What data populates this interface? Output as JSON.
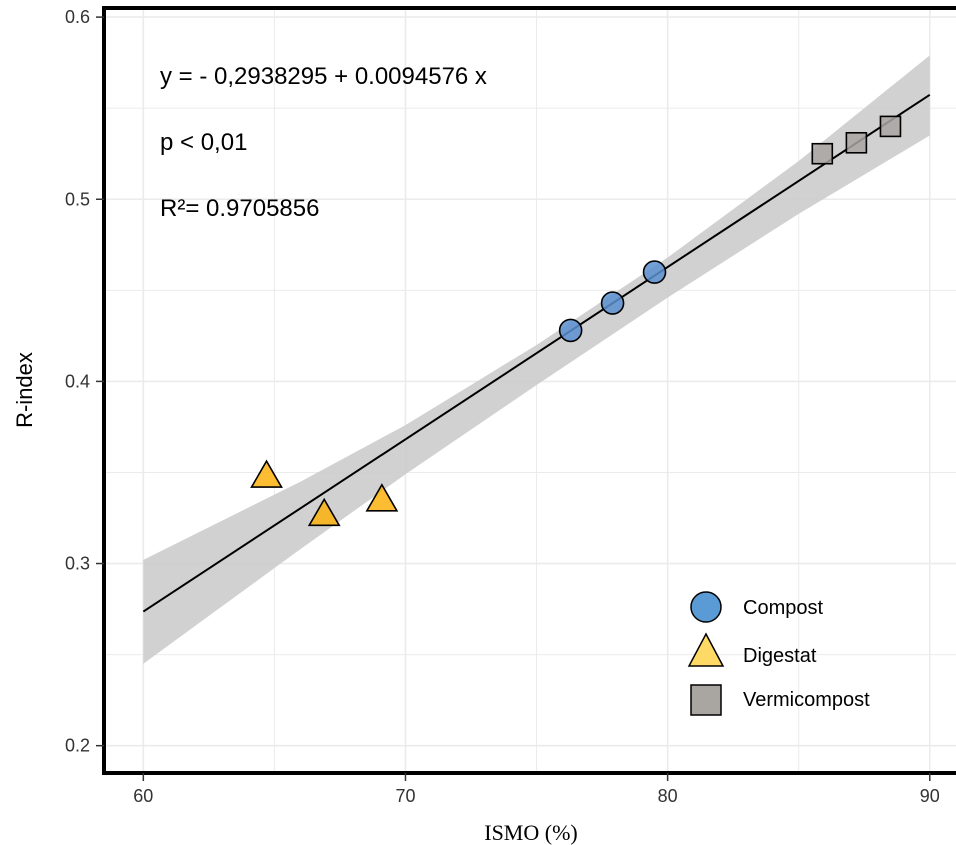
{
  "chart_data": {
    "type": "scatter",
    "xlabel": "ISMO (%)",
    "ylabel": "R-index",
    "xlim": [
      58.5,
      91
    ],
    "ylim": [
      0.185,
      0.605
    ],
    "x_ticks": [
      60,
      70,
      80,
      90
    ],
    "y_ticks": [
      0.2,
      0.3,
      0.4,
      0.5,
      0.6
    ],
    "x_tick_labels": [
      "60",
      "70",
      "80",
      "90"
    ],
    "y_tick_labels": [
      "0.2",
      "0.3",
      "0.4",
      "0.5",
      "0.6"
    ],
    "grid": true,
    "legend_position": "bottom-right",
    "annotations": [
      "y = - 0,2938295 + 0.0094576 x",
      "p < 0,01",
      "R²= 0.9705856"
    ],
    "regression": {
      "x_range": [
        60,
        90
      ],
      "intercept": -0.2938295,
      "slope": 0.0094576,
      "ci_lower": [
        [
          60,
          0.245
        ],
        [
          66,
          0.308
        ],
        [
          70,
          0.349
        ],
        [
          75,
          0.398
        ],
        [
          80,
          0.446
        ],
        [
          85,
          0.492
        ],
        [
          90,
          0.535
        ]
      ],
      "ci_upper": [
        [
          60,
          0.302
        ],
        [
          66,
          0.345
        ],
        [
          70,
          0.376
        ],
        [
          75,
          0.42
        ],
        [
          80,
          0.468
        ],
        [
          85,
          0.521
        ],
        [
          90,
          0.579
        ]
      ]
    },
    "series": [
      {
        "name": "Compost",
        "marker": "circle",
        "color": "#5b8fd0",
        "points": [
          [
            76.3,
            0.428
          ],
          [
            77.9,
            0.443
          ],
          [
            79.5,
            0.46
          ]
        ]
      },
      {
        "name": "Digestat",
        "marker": "triangle",
        "color": "#fcb10f",
        "points": [
          [
            64.7,
            0.348
          ],
          [
            66.9,
            0.327
          ],
          [
            69.1,
            0.335
          ]
        ]
      },
      {
        "name": "Vermicompost",
        "marker": "square",
        "color": "#a8a5a1",
        "points": [
          [
            85.9,
            0.525
          ],
          [
            87.2,
            0.531
          ],
          [
            88.5,
            0.54
          ]
        ]
      }
    ],
    "colors": {
      "ci_band": "#cccccc",
      "regression_line": "#000000",
      "grid": "#ebebeb",
      "axis": "#000000",
      "legend_compost": "#5b9bd5",
      "legend_digestat": "#ffd966",
      "legend_vermicompost": "#a9a5a1"
    }
  }
}
